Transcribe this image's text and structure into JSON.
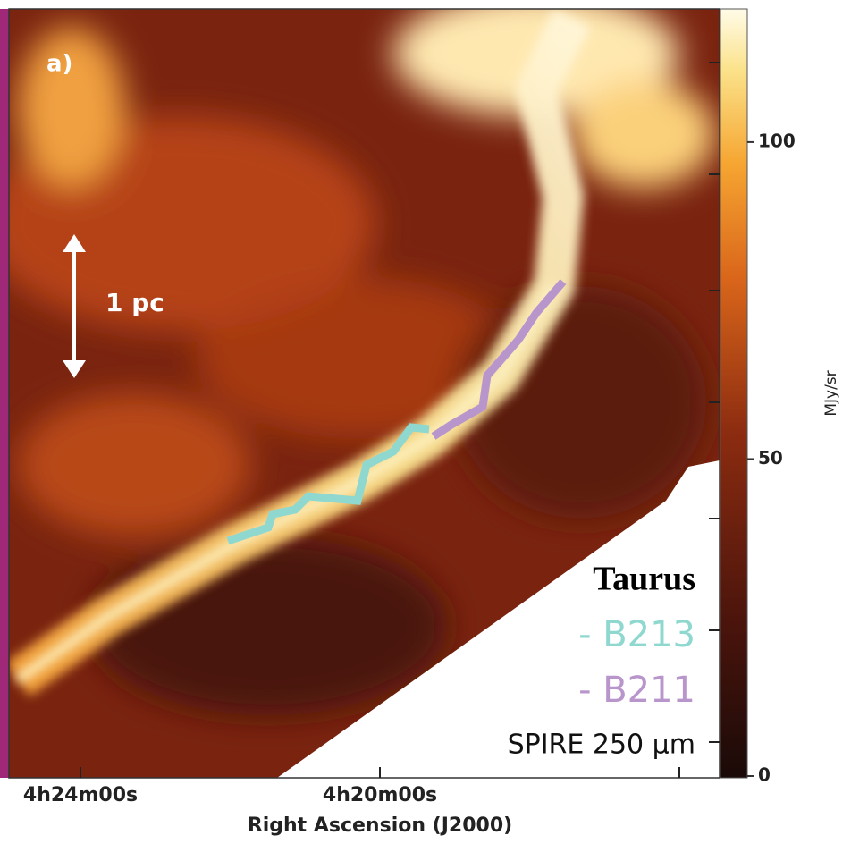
{
  "panel_label": "a)",
  "scale_bar": "1 pc",
  "region": "Taurus",
  "filaments": [
    "- B213",
    "- B211"
  ],
  "band": "SPIRE 250 µm",
  "x_axis": {
    "title": "Right Ascension (J2000)",
    "ticks": [
      "4h24m00s",
      "4h20m00s"
    ]
  },
  "colorbar": {
    "label": "MJy/sr",
    "range": [
      0,
      121
    ],
    "ticks": [
      0,
      50,
      100
    ]
  }
}
